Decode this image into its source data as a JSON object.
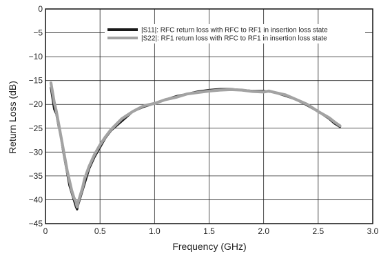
{
  "chart_data": {
    "type": "line",
    "title": "",
    "xlabel": "Frequency (GHz)",
    "ylabel": "Return Loss (dB)",
    "xlim": [
      0,
      3.0
    ],
    "ylim": [
      -45,
      0
    ],
    "xticks": [
      0,
      0.5,
      1.0,
      1.5,
      2.0,
      2.5,
      3.0
    ],
    "xtick_labels": [
      "0",
      "0.5",
      "1.0",
      "1.5",
      "2.0",
      "2.5",
      "3.0"
    ],
    "yticks": [
      0,
      -5,
      -10,
      -15,
      -20,
      -25,
      -30,
      -35,
      -40,
      -45
    ],
    "ytick_labels": [
      "0",
      "−5",
      "−10",
      "−15",
      "−20",
      "−25",
      "−30",
      "−35",
      "−40",
      "−45"
    ],
    "grid": true,
    "legend_position": "top-right",
    "series": [
      {
        "name": "|S11|: RFC return loss with RFC to RF1 in insertion loss state",
        "color": "#1a1a1a",
        "x": [
          0.05,
          0.08,
          0.1,
          0.12,
          0.14,
          0.16,
          0.18,
          0.2,
          0.22,
          0.24,
          0.26,
          0.28,
          0.29,
          0.3,
          0.32,
          0.34,
          0.36,
          0.4,
          0.45,
          0.5,
          0.55,
          0.6,
          0.7,
          0.8,
          0.9,
          1.0,
          1.1,
          1.2,
          1.3,
          1.4,
          1.5,
          1.6,
          1.7,
          1.8,
          1.9,
          2.0,
          2.05,
          2.1,
          2.2,
          2.3,
          2.4,
          2.5,
          2.6,
          2.65,
          2.7
        ],
        "y": [
          -16.5,
          -21.0,
          -22.0,
          -24.5,
          -26.5,
          -29.5,
          -32.0,
          -34.5,
          -37.0,
          -38.5,
          -40.0,
          -41.5,
          -42.0,
          -41.0,
          -39.5,
          -38.0,
          -36.5,
          -33.5,
          -31.0,
          -29.0,
          -27.0,
          -25.5,
          -23.5,
          -21.5,
          -20.5,
          -19.8,
          -19.0,
          -18.3,
          -17.8,
          -17.3,
          -17.0,
          -16.8,
          -16.8,
          -17.0,
          -17.2,
          -17.2,
          -17.3,
          -17.5,
          -18.2,
          -19.0,
          -20.2,
          -21.5,
          -23.0,
          -24.0,
          -24.7
        ]
      },
      {
        "name": "|S22|: RF1 return loss with RFC to RF1 in insertion loss state",
        "color": "#a3a3a3",
        "x": [
          0.05,
          0.08,
          0.1,
          0.12,
          0.14,
          0.16,
          0.18,
          0.2,
          0.22,
          0.24,
          0.26,
          0.28,
          0.29,
          0.3,
          0.32,
          0.34,
          0.36,
          0.4,
          0.45,
          0.5,
          0.55,
          0.6,
          0.7,
          0.8,
          0.9,
          1.0,
          1.1,
          1.2,
          1.3,
          1.4,
          1.5,
          1.6,
          1.7,
          1.8,
          1.9,
          2.0,
          2.05,
          2.1,
          2.2,
          2.3,
          2.4,
          2.5,
          2.6,
          2.65,
          2.7
        ],
        "y": [
          -15.5,
          -19.5,
          -21.5,
          -24.0,
          -26.5,
          -29.0,
          -31.5,
          -34.0,
          -36.0,
          -38.0,
          -39.5,
          -40.5,
          -41.5,
          -40.5,
          -39.0,
          -37.5,
          -35.5,
          -33.0,
          -30.5,
          -28.5,
          -26.8,
          -25.3,
          -23.0,
          -21.5,
          -20.3,
          -19.8,
          -19.0,
          -18.5,
          -17.8,
          -17.5,
          -17.2,
          -17.0,
          -16.9,
          -17.0,
          -17.3,
          -17.4,
          -17.2,
          -17.5,
          -18.0,
          -19.0,
          -20.0,
          -21.5,
          -22.8,
          -23.7,
          -24.5
        ]
      }
    ]
  }
}
